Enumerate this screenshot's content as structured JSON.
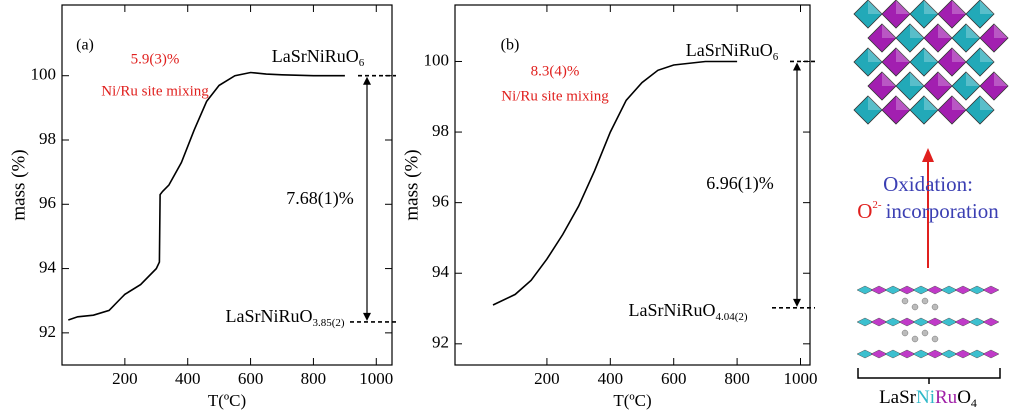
{
  "chart_data": [
    {
      "type": "line",
      "panel_label": "(a)",
      "xlabel": "T(ºC)",
      "ylabel": "mass (%)",
      "x": [
        20,
        50,
        100,
        150,
        190,
        200,
        250,
        300,
        310,
        312,
        320,
        340,
        380,
        420,
        460,
        500,
        550,
        600,
        650,
        700,
        800,
        900
      ],
      "series": [
        {
          "color": "#000000",
          "values": [
            92.4,
            92.5,
            92.55,
            92.7,
            93.1,
            93.2,
            93.5,
            94.0,
            94.2,
            96.3,
            96.4,
            96.6,
            97.3,
            98.3,
            99.2,
            99.7,
            100.0,
            100.1,
            100.05,
            100.03,
            100.0,
            100.0
          ]
        }
      ],
      "xlim": [
        0,
        1050
      ],
      "ylim": [
        91.0,
        102.2
      ],
      "xticks": [
        200,
        400,
        600,
        800,
        1000
      ],
      "yticks": [
        92,
        94,
        96,
        98,
        100
      ],
      "reference_levels": [
        100,
        92.34
      ],
      "annotations": {
        "mixing_value": "5.9(3)%",
        "mixing_text": "Ni/Ru site mixing",
        "top_formula": "LaSrNiRuO",
        "top_subscript": "6",
        "bottom_formula": "LaSrNiRuO",
        "bottom_subscript": "3.85(2)",
        "mass_change": "7.68(1)%"
      }
    },
    {
      "type": "line",
      "panel_label": "(b)",
      "xlabel": "T(ºC)",
      "ylabel": "mass (%)",
      "x": [
        30,
        100,
        150,
        200,
        250,
        300,
        350,
        400,
        450,
        500,
        550,
        600,
        700,
        800
      ],
      "series": [
        {
          "color": "#000000",
          "values": [
            93.1,
            93.4,
            93.8,
            94.4,
            95.1,
            95.9,
            96.9,
            98.0,
            98.9,
            99.4,
            99.75,
            99.9,
            100.0,
            100.0
          ]
        }
      ],
      "xlim": [
        -90,
        1030
      ],
      "ylim": [
        91.4,
        101.6
      ],
      "xticks": [
        200,
        400,
        600,
        800,
        1000
      ],
      "yticks": [
        92,
        94,
        96,
        98,
        100
      ],
      "reference_levels": [
        100,
        93.02
      ],
      "annotations": {
        "mixing_value": "8.3(4)%",
        "mixing_text": "Ni/Ru site mixing",
        "top_formula": "LaSrNiRuO",
        "top_subscript": "6",
        "bottom_formula": "LaSrNiRuO",
        "bottom_subscript": "4.04(2)",
        "mass_change": "6.96(1)%"
      }
    }
  ],
  "diagram": {
    "step_title": "Oxidation:",
    "ion": "O",
    "ion_charge": "2-",
    "step_text": "incorporation",
    "label_parts": [
      "LaSr",
      "Ni",
      "Ru",
      "O"
    ],
    "label_subscript": "4"
  }
}
